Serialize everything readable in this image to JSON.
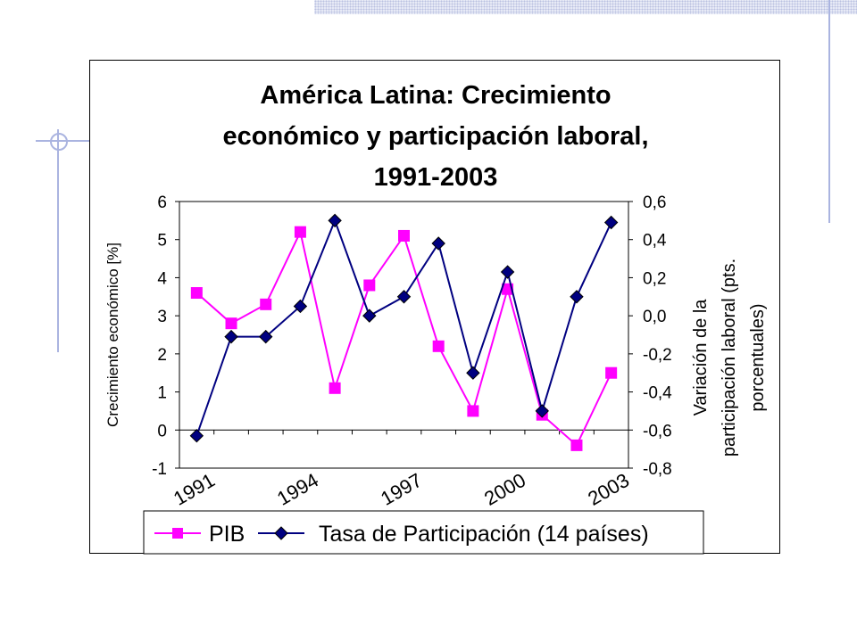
{
  "chart_data": {
    "type": "line",
    "title_lines": [
      "América Latina: Crecimiento",
      "económico y participación laboral,",
      "1991-2003"
    ],
    "ylabel_left": "Crecimiento económico [%]",
    "ylabel_right_lines": [
      "Variación de la",
      "participación laboral (pts.",
      "porcentuales)"
    ],
    "x": [
      1991,
      1992,
      1993,
      1994,
      1995,
      1996,
      1997,
      1998,
      1999,
      2000,
      2001,
      2002,
      2003
    ],
    "x_tick_labels": [
      "1991",
      "1994",
      "1997",
      "2000",
      "2003"
    ],
    "x_tick_label_values": [
      1991,
      1994,
      1997,
      2000,
      2003
    ],
    "ylim_left": [
      -1,
      6
    ],
    "yticks_left": [
      "-1",
      "0",
      "1",
      "2",
      "3",
      "4",
      "5",
      "6"
    ],
    "ylim_right": [
      -0.8,
      0.6
    ],
    "yticks_right": [
      "-0,8",
      "-0,6",
      "-0,4",
      "-0,2",
      "0,0",
      "0,2",
      "0,4",
      "0,6"
    ],
    "series": [
      {
        "name": "PIB",
        "axis": "left",
        "color": "#ff00ff",
        "marker": "square",
        "values": [
          3.6,
          2.8,
          3.3,
          5.2,
          1.1,
          3.8,
          5.1,
          2.2,
          0.5,
          3.7,
          0.4,
          -0.4,
          1.5
        ]
      },
      {
        "name": "Tasa de Participación (14 países)",
        "axis": "right",
        "color": "#000080",
        "marker": "diamond",
        "values": [
          -0.63,
          -0.11,
          -0.11,
          0.05,
          0.5,
          0.0,
          0.1,
          0.38,
          -0.3,
          0.23,
          -0.5,
          0.1,
          0.49
        ]
      }
    ],
    "grid": false,
    "legend_position": "bottom"
  }
}
